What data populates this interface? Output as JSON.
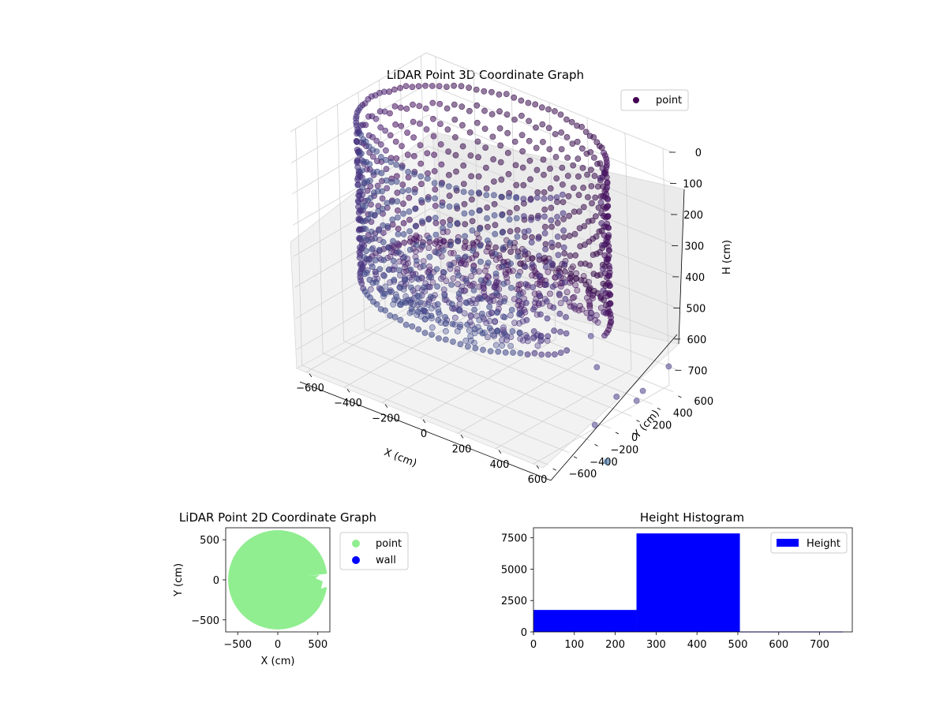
{
  "chart_data": [
    {
      "type": "scatter",
      "title": "LiDAR Point 3D Coordinate Graph",
      "xlabel": "X (cm)",
      "ylabel": "Y (cm)",
      "zlabel": "H (cm)",
      "xlim": [
        -650,
        650
      ],
      "ylim": [
        -650,
        650
      ],
      "zlim": [
        0,
        760
      ],
      "z_inverted": true,
      "x_ticks": [
        "−600",
        "−400",
        "−200",
        "0",
        "200",
        "400",
        "600"
      ],
      "y_ticks": [
        "−600",
        "−400",
        "−200",
        "0",
        "200",
        "400",
        "600"
      ],
      "z_ticks": [
        "0",
        "100",
        "200",
        "300",
        "400",
        "500",
        "600",
        "700"
      ],
      "grid": true,
      "legend": {
        "placement": "top-right",
        "entries": [
          "point"
        ]
      },
      "colormap": "viridis",
      "series": [
        {
          "name": "point",
          "shape": "cylinder",
          "center": [
            0,
            0
          ],
          "radius": 580,
          "height_range": [
            0,
            500
          ],
          "opening_x_range": [
            300,
            650
          ],
          "opening_y_range": [
            -200,
            80
          ],
          "outliers": [
            [
              500,
              100,
              520
            ],
            [
              550,
              60,
              600
            ],
            [
              600,
              650,
              700
            ],
            [
              600,
              400,
              730
            ],
            [
              650,
              250,
              720
            ],
            [
              600,
              150,
              700
            ],
            [
              650,
              -150,
              720
            ],
            [
              850,
              -400,
              740
            ],
            [
              150,
              50,
              150
            ],
            [
              250,
              -20,
              220
            ],
            [
              350,
              0,
              300
            ]
          ]
        }
      ]
    },
    {
      "type": "scatter",
      "title": "LiDAR Point 2D Coordinate Graph",
      "xlabel": "X (cm)",
      "ylabel": "Y (cm)",
      "xlim": [
        -650,
        650
      ],
      "ylim": [
        -650,
        650
      ],
      "x_ticks": [
        "−500",
        "0",
        "500"
      ],
      "y_ticks": [
        "500",
        "0",
        "−500"
      ],
      "legend": {
        "placement": "right",
        "entries": [
          "point",
          "wall"
        ]
      },
      "series": [
        {
          "name": "point",
          "color": "#90ee90",
          "shape": "disk",
          "center": [
            0,
            0
          ],
          "radius": 620
        },
        {
          "name": "wall",
          "color": "#0000ff"
        }
      ]
    },
    {
      "type": "bar",
      "title": "Height Histogram",
      "xlim": [
        0,
        780
      ],
      "ylim": [
        0,
        8300
      ],
      "x_ticks": [
        "0",
        "100",
        "200",
        "300",
        "400",
        "500",
        "600",
        "700"
      ],
      "y_ticks": [
        "0",
        "2500",
        "5000",
        "7500"
      ],
      "legend": {
        "placement": "top-right",
        "entries": [
          "Height"
        ]
      },
      "series": [
        {
          "name": "Height",
          "color": "#0000ff",
          "bins": [
            {
              "from": 0,
              "to": 252,
              "count": 1750
            },
            {
              "from": 252,
              "to": 505,
              "count": 7850
            },
            {
              "from": 505,
              "to": 757,
              "count": 30
            }
          ]
        }
      ]
    }
  ]
}
